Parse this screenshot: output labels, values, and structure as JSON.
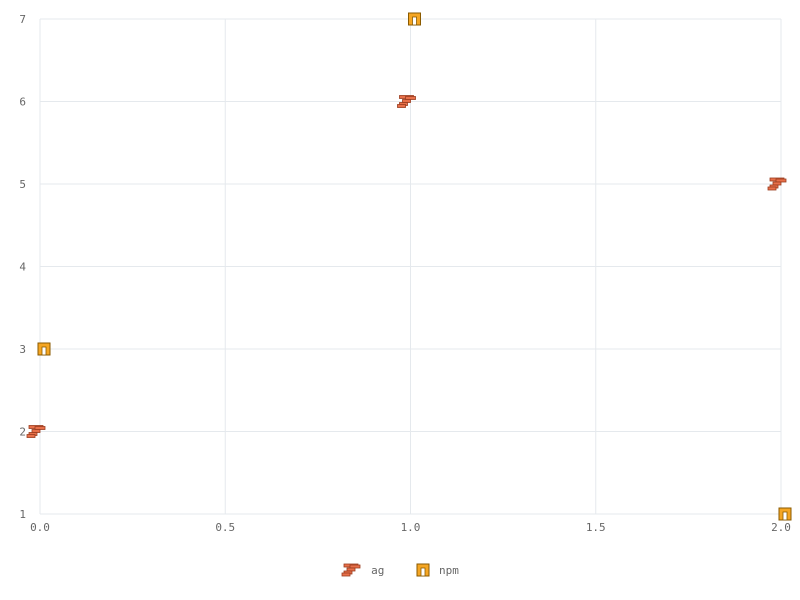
{
  "chart_data": {
    "type": "scatter",
    "title": "",
    "xlabel": "",
    "ylabel": "",
    "xlim": [
      0,
      2
    ],
    "ylim": [
      1,
      7
    ],
    "x_ticks": [
      "0.0",
      "0.5",
      "1.0",
      "1.5",
      "2.0"
    ],
    "y_ticks": [
      "1",
      "2",
      "3",
      "4",
      "5",
      "6",
      "7"
    ],
    "grid": true,
    "legend_position": "bottom-center",
    "series": [
      {
        "name": "ag",
        "color": "#e8704a",
        "icon": "ag-logo-icon",
        "points": [
          {
            "x": 0,
            "y": 2
          },
          {
            "x": 1,
            "y": 6
          },
          {
            "x": 2,
            "y": 5
          }
        ]
      },
      {
        "name": "npm",
        "color": "#f5a623",
        "icon": "npm-logo-icon",
        "points": [
          {
            "x": 0,
            "y": 3
          },
          {
            "x": 1,
            "y": 7
          },
          {
            "x": 2,
            "y": 1
          }
        ]
      }
    ]
  }
}
